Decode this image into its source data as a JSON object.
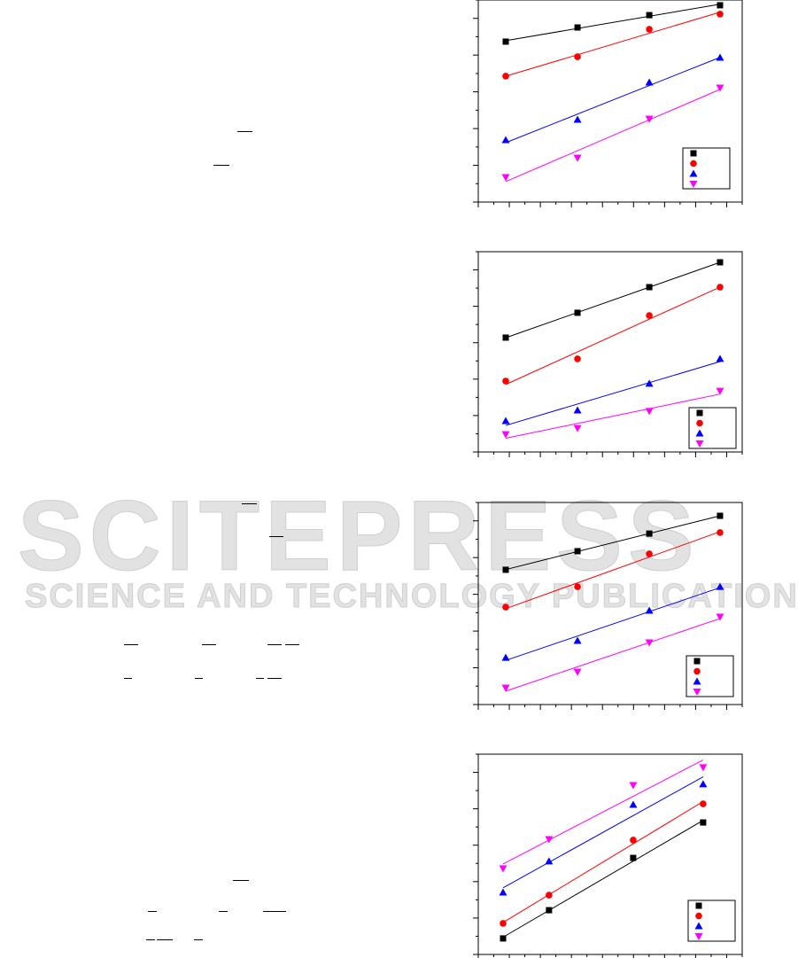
{
  "watermark": {
    "line1": "SCITEPRESS",
    "line2": "SCIENCE AND TECHNOLOGY PUBLICATIONS"
  },
  "colors": {
    "series1": "#000000",
    "series2": "#ff0000",
    "series3": "#0000ff",
    "series4": "#ff00ff",
    "watermark": "#d8d8d8"
  },
  "chart_data": [
    {
      "type": "scatter",
      "fit": "linear",
      "legend": "bottom-right",
      "grid": false,
      "xlim": [
        0,
        10
      ],
      "ylim": [
        0,
        10
      ],
      "x": [
        1.04,
        3.76,
        6.48,
        9.16
      ],
      "series": [
        {
          "marker": "square",
          "color": "#000000",
          "values": [
            7.94,
            8.64,
            9.25,
            9.74
          ]
        },
        {
          "marker": "circle",
          "color": "#ff0000",
          "values": [
            6.23,
            7.19,
            8.55,
            9.3
          ]
        },
        {
          "marker": "triangle-up",
          "color": "#0000ff",
          "values": [
            3.07,
            4.08,
            5.92,
            7.15
          ]
        },
        {
          "marker": "triangle-down",
          "color": "#ff00ff",
          "values": [
            1.23,
            2.19,
            4.12,
            5.66
          ]
        }
      ]
    },
    {
      "type": "scatter",
      "fit": "linear",
      "legend": "bottom-right",
      "grid": false,
      "xlim": [
        0,
        10
      ],
      "ylim": [
        0,
        10
      ],
      "x": [
        1.04,
        3.76,
        6.48,
        9.16
      ],
      "series": [
        {
          "marker": "square",
          "color": "#000000",
          "values": [
            5.71,
            6.95,
            8.23,
            9.47
          ]
        },
        {
          "marker": "circle",
          "color": "#ff0000",
          "values": [
            3.54,
            4.65,
            6.81,
            8.23
          ]
        },
        {
          "marker": "triangle-up",
          "color": "#0000ff",
          "values": [
            1.55,
            2.08,
            3.41,
            4.65
          ]
        },
        {
          "marker": "triangle-down",
          "color": "#ff00ff",
          "values": [
            0.88,
            1.19,
            2.04,
            3.05
          ]
        }
      ]
    },
    {
      "type": "scatter",
      "fit": "linear",
      "legend": "bottom-right",
      "grid": false,
      "xlim": [
        0,
        10
      ],
      "ylim": [
        0,
        10
      ],
      "x": [
        1.04,
        3.76,
        6.48,
        9.16
      ],
      "series": [
        {
          "marker": "square",
          "color": "#000000",
          "values": [
            6.67,
            7.59,
            8.46,
            9.34
          ]
        },
        {
          "marker": "circle",
          "color": "#ff0000",
          "values": [
            4.82,
            5.83,
            7.46,
            8.51
          ]
        },
        {
          "marker": "triangle-up",
          "color": "#0000ff",
          "values": [
            2.32,
            3.16,
            4.65,
            5.83
          ]
        },
        {
          "marker": "triangle-down",
          "color": "#ff00ff",
          "values": [
            0.83,
            1.62,
            3.07,
            4.34
          ]
        }
      ]
    },
    {
      "type": "scatter",
      "fit": "linear",
      "legend": "bottom-right",
      "grid": false,
      "xlim": [
        0,
        10
      ],
      "ylim": [
        0,
        10
      ],
      "x": [
        0.94,
        2.68,
        5.87,
        8.52
      ],
      "series": [
        {
          "marker": "square",
          "color": "#000000",
          "values": [
            0.8,
            2.21,
            4.82,
            6.59
          ]
        },
        {
          "marker": "circle",
          "color": "#ff0000",
          "values": [
            1.55,
            2.96,
            5.71,
            7.52
          ]
        },
        {
          "marker": "triangle-up",
          "color": "#0000ff",
          "values": [
            3.1,
            4.65,
            7.48,
            8.5
          ]
        },
        {
          "marker": "triangle-down",
          "color": "#ff00ff",
          "values": [
            4.29,
            5.75,
            8.45,
            9.34
          ]
        }
      ]
    }
  ]
}
